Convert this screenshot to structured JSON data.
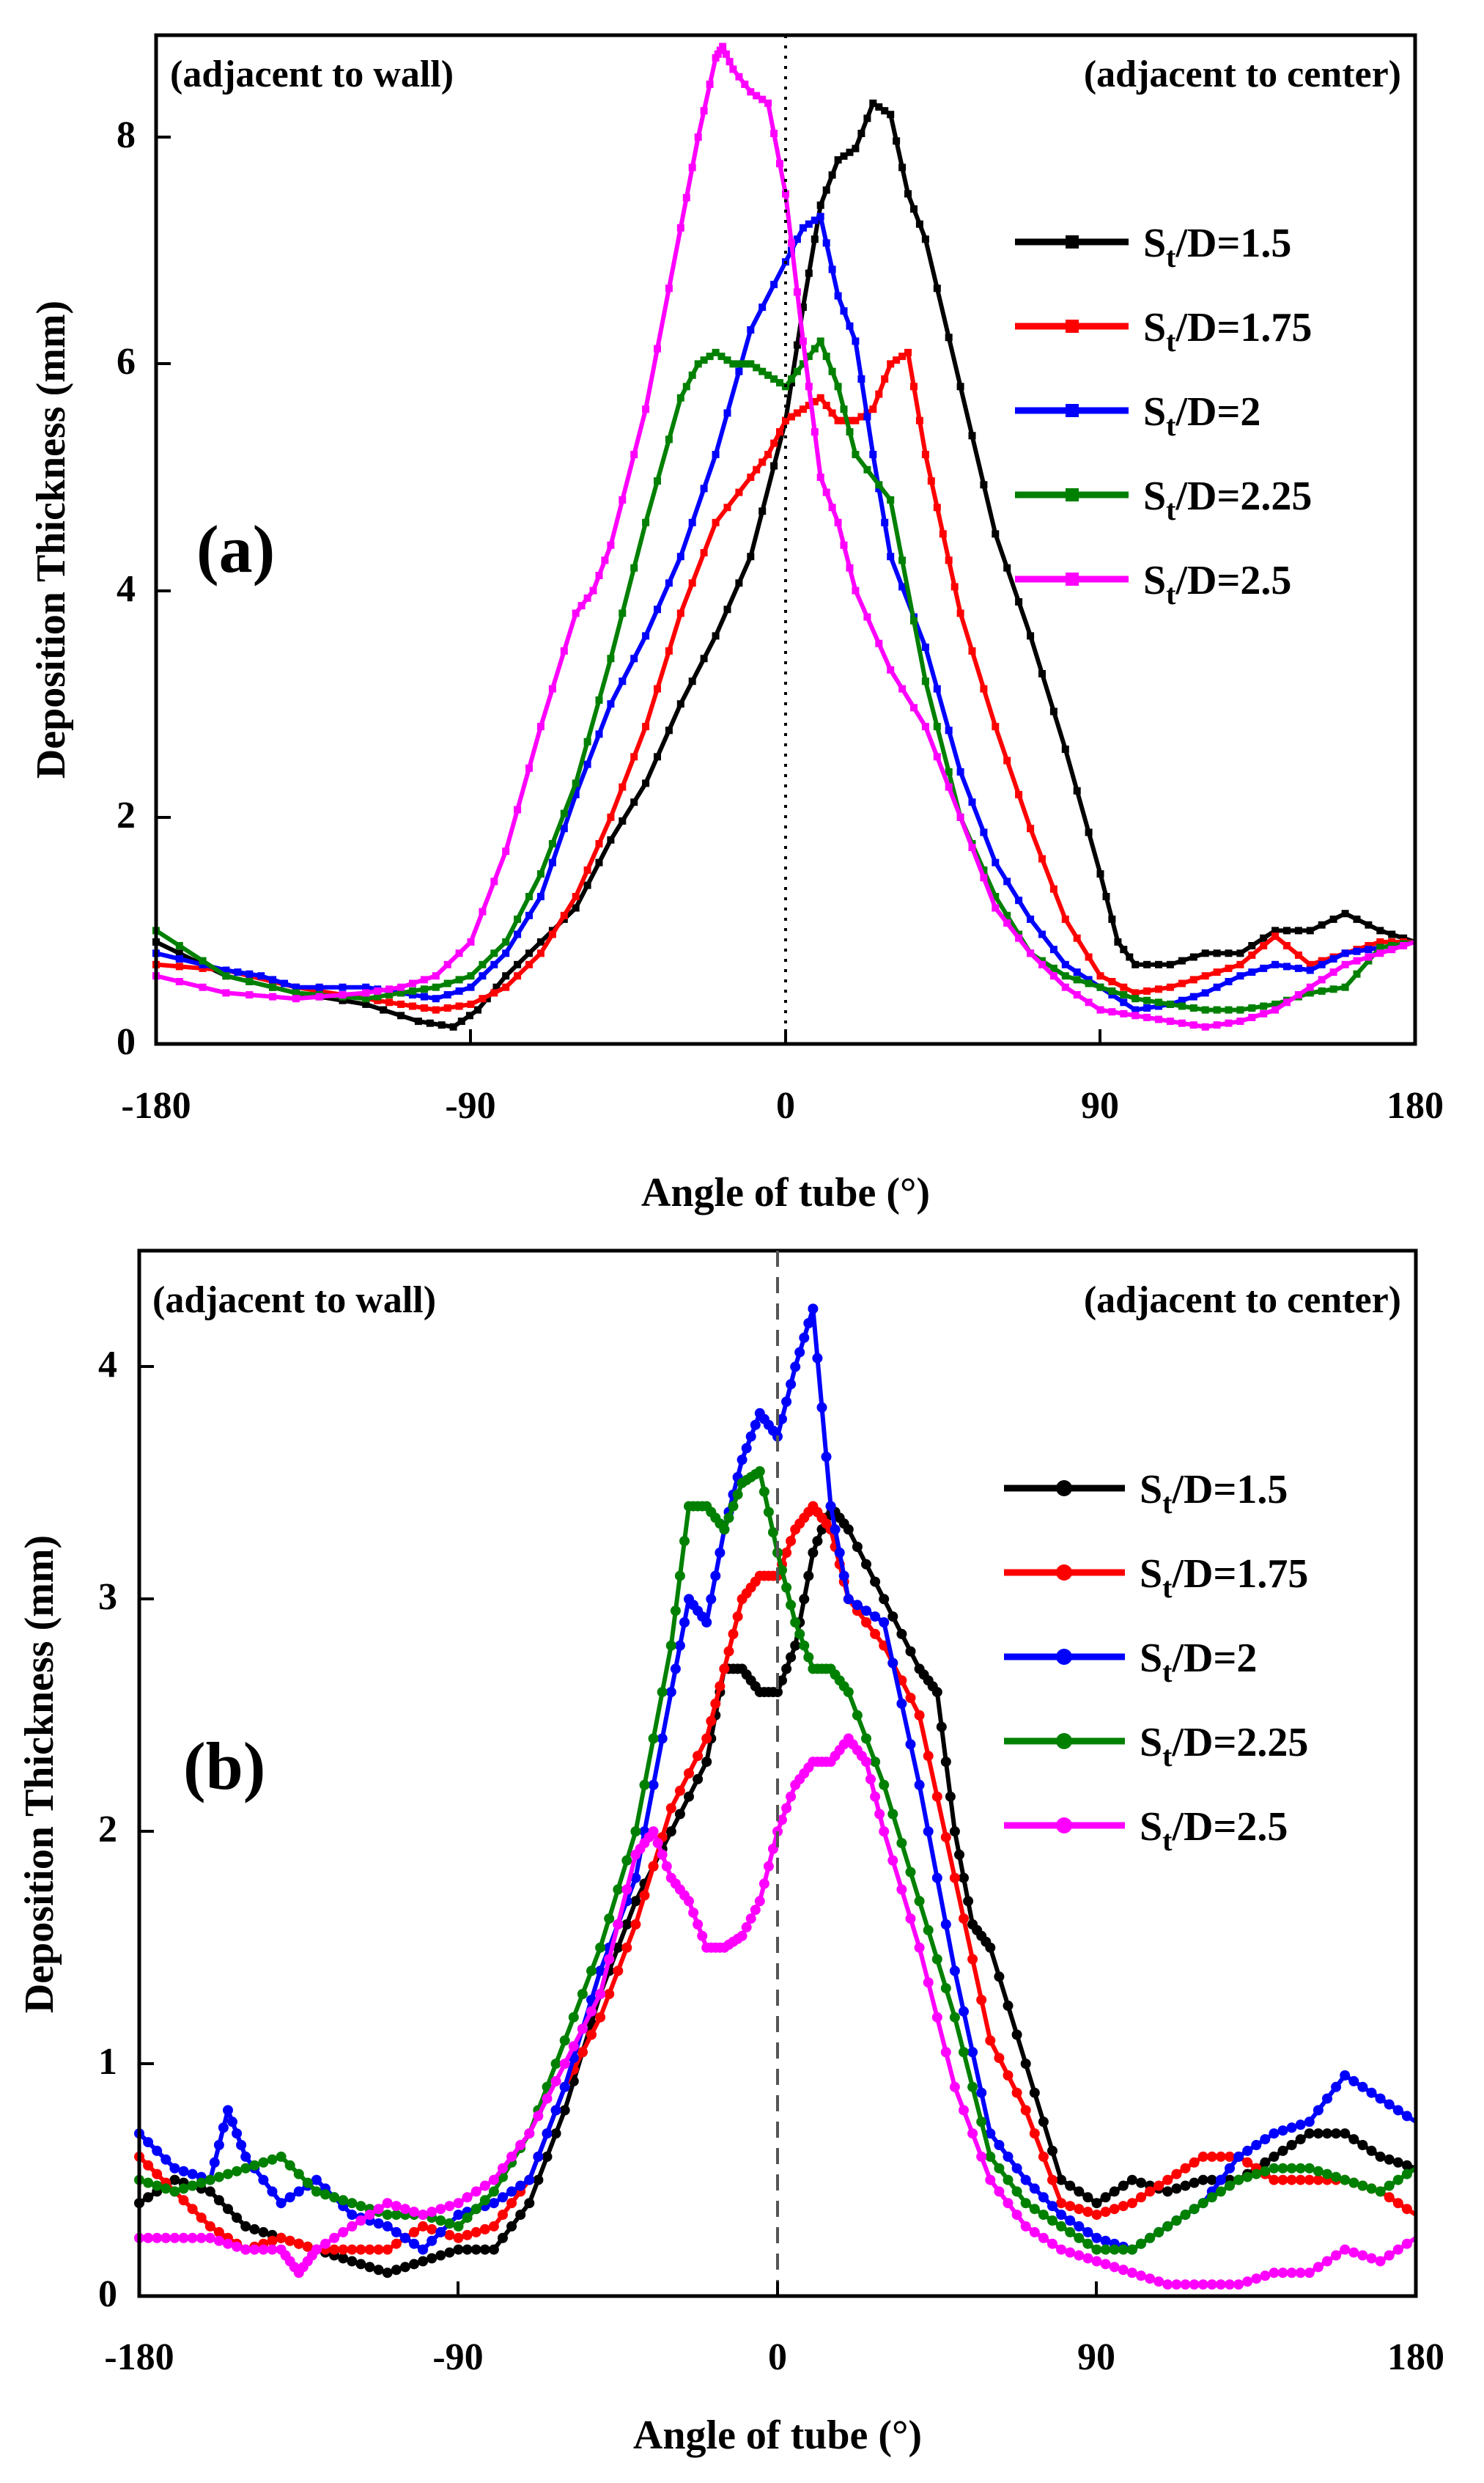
{
  "chart_data": [
    {
      "type": "line",
      "panel_label": "(a)",
      "title": "",
      "xlabel": "Angle of tube (°)",
      "ylabel": "Deposition Thickness (mm)",
      "xlim": [
        -180,
        180
      ],
      "ylim": [
        0,
        8.9
      ],
      "xticks": [
        "-180",
        "-90",
        "0",
        "90",
        "180"
      ],
      "xtick_values": [
        -180,
        -90,
        0,
        90,
        180
      ],
      "yticks": [
        "0",
        "2",
        "4",
        "6",
        "8"
      ],
      "ytick_values": [
        0,
        2,
        4,
        6,
        8
      ],
      "annotations": {
        "left": "(adjacent to wall)",
        "right": "(adjacent to center)"
      },
      "reference_line": {
        "x": 0,
        "style": "dotted"
      },
      "marker": "square",
      "legend_position": "upper-right",
      "series": [
        {
          "name_main": "S",
          "name_sub": "t",
          "name_tail": "/D=1.5",
          "color": "#000000",
          "x": [
            -180,
            -160,
            -140,
            -120,
            -105,
            -95,
            -88,
            -80,
            -70,
            -60,
            -50,
            -40,
            -30,
            -20,
            -10,
            0,
            5,
            10,
            15,
            20,
            25,
            30,
            35,
            40,
            50,
            60,
            70,
            80,
            90,
            95,
            100,
            110,
            120,
            130,
            140,
            150,
            160,
            170,
            180
          ],
          "y": [
            0.9,
            0.6,
            0.45,
            0.35,
            0.2,
            0.15,
            0.3,
            0.6,
            0.9,
            1.2,
            1.8,
            2.3,
            3.0,
            3.6,
            4.3,
            5.5,
            6.5,
            7.4,
            7.8,
            7.9,
            8.3,
            8.2,
            7.5,
            7.1,
            5.8,
            4.5,
            3.6,
            2.6,
            1.5,
            0.9,
            0.7,
            0.7,
            0.8,
            0.8,
            1.0,
            1.0,
            1.15,
            1.0,
            0.9
          ]
        },
        {
          "name_main": "S",
          "name_sub": "t",
          "name_tail": "/D=1.75",
          "color": "#ff0000",
          "x": [
            -180,
            -160,
            -140,
            -120,
            -110,
            -100,
            -90,
            -80,
            -70,
            -60,
            -50,
            -40,
            -30,
            -20,
            -10,
            -5,
            0,
            5,
            10,
            15,
            20,
            25,
            30,
            35,
            40,
            45,
            50,
            60,
            70,
            80,
            90,
            100,
            110,
            120,
            130,
            140,
            150,
            160,
            170,
            180
          ],
          "y": [
            0.7,
            0.65,
            0.5,
            0.4,
            0.35,
            0.3,
            0.35,
            0.5,
            0.8,
            1.3,
            2.0,
            2.8,
            3.8,
            4.6,
            5.0,
            5.2,
            5.5,
            5.6,
            5.7,
            5.5,
            5.5,
            5.6,
            6.0,
            6.1,
            5.2,
            4.5,
            3.8,
            2.8,
            1.9,
            1.1,
            0.6,
            0.45,
            0.5,
            0.6,
            0.7,
            0.95,
            0.7,
            0.8,
            0.9,
            0.9
          ]
        },
        {
          "name_main": "S",
          "name_sub": "t",
          "name_tail": "/D=2",
          "color": "#0000ff",
          "x": [
            -180,
            -160,
            -150,
            -140,
            -120,
            -110,
            -100,
            -90,
            -80,
            -70,
            -60,
            -50,
            -40,
            -30,
            -20,
            -10,
            0,
            5,
            10,
            15,
            20,
            25,
            30,
            40,
            50,
            60,
            70,
            80,
            90,
            100,
            110,
            120,
            130,
            140,
            150,
            160,
            170,
            180
          ],
          "y": [
            0.8,
            0.65,
            0.6,
            0.5,
            0.5,
            0.45,
            0.4,
            0.5,
            0.8,
            1.3,
            2.2,
            3.0,
            3.6,
            4.3,
            5.2,
            6.3,
            6.9,
            7.2,
            7.3,
            6.6,
            6.2,
            5.2,
            4.3,
            3.5,
            2.4,
            1.6,
            1.1,
            0.7,
            0.5,
            0.3,
            0.35,
            0.45,
            0.6,
            0.7,
            0.65,
            0.8,
            0.85,
            0.9
          ]
        },
        {
          "name_main": "S",
          "name_sub": "t",
          "name_tail": "/D=2.25",
          "color": "#008000",
          "x": [
            -180,
            -160,
            -140,
            -120,
            -110,
            -100,
            -90,
            -80,
            -70,
            -60,
            -50,
            -40,
            -30,
            -25,
            -20,
            -15,
            -10,
            -5,
            0,
            5,
            10,
            15,
            20,
            30,
            40,
            50,
            60,
            70,
            80,
            90,
            100,
            110,
            120,
            130,
            140,
            150,
            160,
            170,
            180
          ],
          "y": [
            1.0,
            0.6,
            0.45,
            0.4,
            0.45,
            0.5,
            0.6,
            0.9,
            1.5,
            2.3,
            3.4,
            4.6,
            5.7,
            6.0,
            6.1,
            6.0,
            6.0,
            5.9,
            5.8,
            6.0,
            6.2,
            5.8,
            5.2,
            4.8,
            3.2,
            2.0,
            1.3,
            0.8,
            0.6,
            0.5,
            0.4,
            0.35,
            0.3,
            0.3,
            0.35,
            0.45,
            0.5,
            0.85,
            0.9
          ]
        },
        {
          "name_main": "S",
          "name_sub": "t",
          "name_tail": "/D=2.5",
          "color": "#ff00ff",
          "x": [
            -180,
            -160,
            -140,
            -120,
            -110,
            -100,
            -90,
            -80,
            -70,
            -60,
            -55,
            -50,
            -40,
            -30,
            -25,
            -20,
            -18,
            -15,
            -10,
            -5,
            0,
            5,
            10,
            15,
            20,
            30,
            40,
            50,
            60,
            70,
            80,
            90,
            100,
            110,
            120,
            130,
            140,
            150,
            160,
            170,
            180
          ],
          "y": [
            0.6,
            0.45,
            0.4,
            0.45,
            0.5,
            0.6,
            0.9,
            1.7,
            2.8,
            3.8,
            4.0,
            4.4,
            5.6,
            7.2,
            8.0,
            8.7,
            8.8,
            8.6,
            8.4,
            8.3,
            7.5,
            6.2,
            5.0,
            4.6,
            4.0,
            3.3,
            2.8,
            2.0,
            1.2,
            0.8,
            0.5,
            0.3,
            0.25,
            0.2,
            0.15,
            0.2,
            0.3,
            0.5,
            0.7,
            0.8,
            0.9
          ]
        }
      ]
    },
    {
      "type": "line",
      "panel_label": "(b)",
      "title": "",
      "xlabel": "Angle of tube (°)",
      "ylabel": "Deposition Thickness (mm)",
      "xlim": [
        -180,
        180
      ],
      "ylim": [
        0,
        4.5
      ],
      "xticks": [
        "-180",
        "-90",
        "0",
        "90",
        "180"
      ],
      "xtick_values": [
        -180,
        -90,
        0,
        90,
        180
      ],
      "yticks": [
        "0",
        "1",
        "2",
        "3",
        "4"
      ],
      "ytick_values": [
        0,
        1,
        2,
        3,
        4
      ],
      "annotations": {
        "left": "(adjacent to wall)",
        "right": "(adjacent to center)"
      },
      "reference_line": {
        "x": 0,
        "style": "dashed"
      },
      "marker": "circle",
      "legend_position": "right",
      "series": [
        {
          "name_main": "S",
          "name_sub": "t",
          "name_tail": "/D=1.5",
          "color": "#000000",
          "x": [
            -180,
            -170,
            -160,
            -150,
            -140,
            -130,
            -120,
            -110,
            -100,
            -90,
            -80,
            -70,
            -60,
            -50,
            -40,
            -30,
            -20,
            -15,
            -10,
            -5,
            0,
            5,
            10,
            15,
            20,
            30,
            40,
            45,
            50,
            55,
            60,
            70,
            80,
            90,
            100,
            110,
            120,
            130,
            140,
            150,
            160,
            170,
            180
          ],
          "y": [
            0.4,
            0.5,
            0.45,
            0.3,
            0.25,
            0.2,
            0.15,
            0.1,
            0.15,
            0.2,
            0.2,
            0.4,
            0.8,
            1.3,
            1.7,
            2.0,
            2.3,
            2.7,
            2.7,
            2.6,
            2.6,
            2.8,
            3.2,
            3.4,
            3.3,
            3.0,
            2.7,
            2.6,
            2.0,
            1.6,
            1.5,
            1.0,
            0.5,
            0.4,
            0.5,
            0.45,
            0.5,
            0.5,
            0.6,
            0.7,
            0.7,
            0.6,
            0.55
          ]
        },
        {
          "name_main": "S",
          "name_sub": "t",
          "name_tail": "/D=1.75",
          "color": "#ff0000",
          "x": [
            -180,
            -170,
            -160,
            -150,
            -140,
            -130,
            -120,
            -110,
            -100,
            -90,
            -80,
            -70,
            -60,
            -50,
            -40,
            -30,
            -20,
            -15,
            -10,
            -5,
            0,
            5,
            10,
            15,
            20,
            30,
            40,
            50,
            60,
            70,
            80,
            90,
            100,
            110,
            120,
            130,
            140,
            150,
            160,
            170,
            180
          ],
          "y": [
            0.6,
            0.45,
            0.3,
            0.2,
            0.25,
            0.2,
            0.2,
            0.2,
            0.3,
            0.25,
            0.3,
            0.5,
            0.9,
            1.2,
            1.6,
            2.1,
            2.4,
            2.7,
            3.0,
            3.1,
            3.1,
            3.3,
            3.4,
            3.3,
            3.0,
            2.8,
            2.5,
            1.8,
            1.1,
            0.8,
            0.4,
            0.35,
            0.4,
            0.5,
            0.6,
            0.6,
            0.5,
            0.5,
            0.5,
            0.45,
            0.35
          ]
        },
        {
          "name_main": "S",
          "name_sub": "t",
          "name_tail": "/D=2",
          "color": "#0000ff",
          "x": [
            -180,
            -170,
            -160,
            -155,
            -150,
            -140,
            -130,
            -120,
            -110,
            -100,
            -90,
            -80,
            -70,
            -60,
            -50,
            -40,
            -30,
            -25,
            -20,
            -15,
            -10,
            -5,
            0,
            5,
            10,
            15,
            20,
            30,
            40,
            50,
            60,
            70,
            80,
            90,
            100,
            110,
            120,
            130,
            140,
            150,
            160,
            170,
            180
          ],
          "y": [
            0.7,
            0.55,
            0.5,
            0.8,
            0.6,
            0.4,
            0.5,
            0.35,
            0.3,
            0.2,
            0.35,
            0.4,
            0.5,
            0.9,
            1.4,
            1.8,
            2.6,
            3.0,
            2.9,
            3.3,
            3.6,
            3.8,
            3.7,
            4.0,
            4.25,
            3.4,
            3.0,
            2.9,
            2.2,
            1.4,
            0.7,
            0.5,
            0.35,
            0.25,
            0.2,
            0.3,
            0.4,
            0.6,
            0.7,
            0.75,
            0.95,
            0.85,
            0.75
          ]
        },
        {
          "name_main": "S",
          "name_sub": "t",
          "name_tail": "/D=2.25",
          "color": "#008000",
          "x": [
            -180,
            -170,
            -160,
            -150,
            -140,
            -130,
            -120,
            -110,
            -100,
            -90,
            -80,
            -70,
            -60,
            -50,
            -40,
            -30,
            -25,
            -20,
            -15,
            -10,
            -5,
            0,
            5,
            10,
            15,
            20,
            30,
            40,
            50,
            60,
            70,
            80,
            90,
            100,
            110,
            120,
            130,
            140,
            150,
            160,
            170,
            180
          ],
          "y": [
            0.5,
            0.45,
            0.5,
            0.55,
            0.6,
            0.45,
            0.4,
            0.35,
            0.35,
            0.3,
            0.45,
            0.7,
            1.1,
            1.5,
            2.0,
            2.8,
            3.4,
            3.4,
            3.3,
            3.5,
            3.55,
            3.2,
            2.9,
            2.7,
            2.7,
            2.6,
            2.2,
            1.7,
            1.2,
            0.6,
            0.4,
            0.3,
            0.2,
            0.2,
            0.3,
            0.4,
            0.5,
            0.55,
            0.55,
            0.5,
            0.45,
            0.55
          ]
        },
        {
          "name_main": "S",
          "name_sub": "t",
          "name_tail": "/D=2.5",
          "color": "#ff00ff",
          "x": [
            -180,
            -170,
            -160,
            -150,
            -140,
            -135,
            -130,
            -120,
            -110,
            -100,
            -90,
            -80,
            -70,
            -60,
            -50,
            -40,
            -35,
            -30,
            -25,
            -20,
            -15,
            -10,
            -5,
            0,
            5,
            10,
            15,
            20,
            25,
            30,
            40,
            50,
            60,
            70,
            80,
            90,
            100,
            110,
            120,
            130,
            140,
            150,
            160,
            170,
            180
          ],
          "y": [
            0.25,
            0.25,
            0.25,
            0.2,
            0.2,
            0.1,
            0.2,
            0.3,
            0.4,
            0.35,
            0.4,
            0.5,
            0.7,
            1.0,
            1.3,
            1.9,
            2.0,
            1.8,
            1.7,
            1.5,
            1.5,
            1.55,
            1.7,
            2.0,
            2.2,
            2.3,
            2.3,
            2.4,
            2.3,
            2.0,
            1.5,
            0.9,
            0.5,
            0.3,
            0.2,
            0.15,
            0.1,
            0.05,
            0.05,
            0.05,
            0.1,
            0.1,
            0.2,
            0.15,
            0.25
          ]
        }
      ]
    }
  ]
}
